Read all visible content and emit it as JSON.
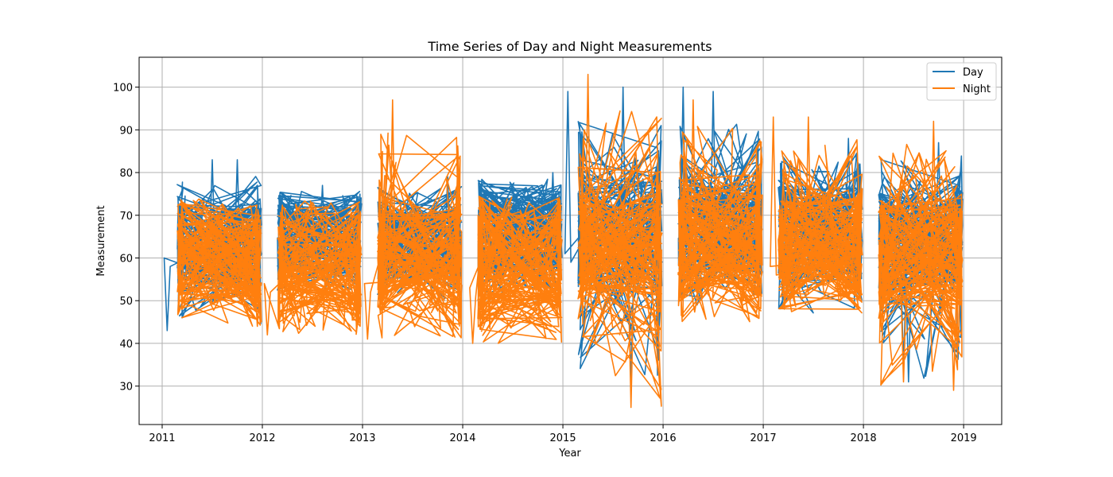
{
  "chart_data": {
    "type": "line",
    "title": "Time Series of Day and Night Measurements",
    "xlabel": "Year",
    "ylabel": "Measurement",
    "xlim": [
      2010.77,
      2019.38
    ],
    "ylim": [
      21,
      107
    ],
    "xticks": [
      2011,
      2012,
      2013,
      2014,
      2015,
      2016,
      2017,
      2018,
      2019
    ],
    "yticks": [
      30,
      40,
      50,
      60,
      70,
      80,
      90,
      100
    ],
    "grid": true,
    "legend": "top-right",
    "series": [
      {
        "name": "Day",
        "color": "#1f77b4",
        "note_ranges": "readings scattered within each year; values estimated from gridlines",
        "years": [
          {
            "year": 2011,
            "min": 43,
            "max": 83,
            "low": 52,
            "high": 73,
            "peaks": [
              [
                2011.05,
                43
              ],
              [
                2011.5,
                83
              ],
              [
                2011.75,
                83
              ]
            ]
          },
          {
            "year": 2012,
            "min": 50,
            "max": 77,
            "low": 55,
            "high": 73,
            "peaks": [
              [
                2012.6,
                77
              ]
            ]
          },
          {
            "year": 2013,
            "min": 50,
            "max": 79,
            "low": 55,
            "high": 73,
            "peaks": [
              [
                2013.85,
                79
              ]
            ]
          },
          {
            "year": 2014,
            "min": 51,
            "max": 80,
            "low": 55,
            "high": 75,
            "peaks": [
              [
                2014.9,
                80
              ]
            ]
          },
          {
            "year": 2015,
            "min": 31,
            "max": 100,
            "low": 53,
            "high": 78,
            "peaks": [
              [
                2015.05,
                99
              ],
              [
                2015.6,
                100
              ],
              [
                2015.68,
                31
              ]
            ]
          },
          {
            "year": 2016,
            "min": 47,
            "max": 100,
            "low": 55,
            "high": 78,
            "peaks": [
              [
                2016.2,
                100
              ],
              [
                2016.5,
                99
              ]
            ]
          },
          {
            "year": 2017,
            "min": 47,
            "max": 88,
            "low": 55,
            "high": 77,
            "peaks": [
              [
                2017.85,
                88
              ]
            ]
          },
          {
            "year": 2018,
            "min": 31,
            "max": 88,
            "low": 52,
            "high": 76,
            "peaks": [
              [
                2018.4,
                35
              ],
              [
                2018.45,
                31
              ],
              [
                2018.75,
                87
              ]
            ]
          }
        ]
      },
      {
        "name": "Night",
        "color": "#ff7f0e",
        "years": [
          {
            "year": 2011,
            "min": 44,
            "max": 76,
            "low": 48,
            "high": 70,
            "peaks": [
              [
                2011.95,
                44
              ]
            ]
          },
          {
            "year": 2012,
            "min": 42,
            "max": 75,
            "low": 46,
            "high": 70,
            "peaks": [
              [
                2012.05,
                42
              ]
            ]
          },
          {
            "year": 2013,
            "min": 41,
            "max": 97,
            "low": 46,
            "high": 72,
            "peaks": [
              [
                2013.3,
                97
              ],
              [
                2013.05,
                41
              ]
            ]
          },
          {
            "year": 2014,
            "min": 40,
            "max": 76,
            "low": 45,
            "high": 72,
            "peaks": [
              [
                2014.1,
                40
              ]
            ]
          },
          {
            "year": 2015,
            "min": 25,
            "max": 103,
            "low": 50,
            "high": 76,
            "peaks": [
              [
                2015.25,
                103
              ],
              [
                2015.68,
                25
              ]
            ]
          },
          {
            "year": 2016,
            "min": 45,
            "max": 97,
            "low": 50,
            "high": 78,
            "peaks": [
              [
                2016.3,
                97
              ]
            ]
          },
          {
            "year": 2017,
            "min": 46,
            "max": 93,
            "low": 50,
            "high": 76,
            "peaks": [
              [
                2017.1,
                93
              ],
              [
                2017.45,
                93
              ]
            ]
          },
          {
            "year": 2018,
            "min": 29,
            "max": 92,
            "low": 48,
            "high": 74,
            "peaks": [
              [
                2018.4,
                31
              ],
              [
                2018.7,
                92
              ],
              [
                2018.9,
                29
              ]
            ]
          }
        ]
      }
    ]
  }
}
